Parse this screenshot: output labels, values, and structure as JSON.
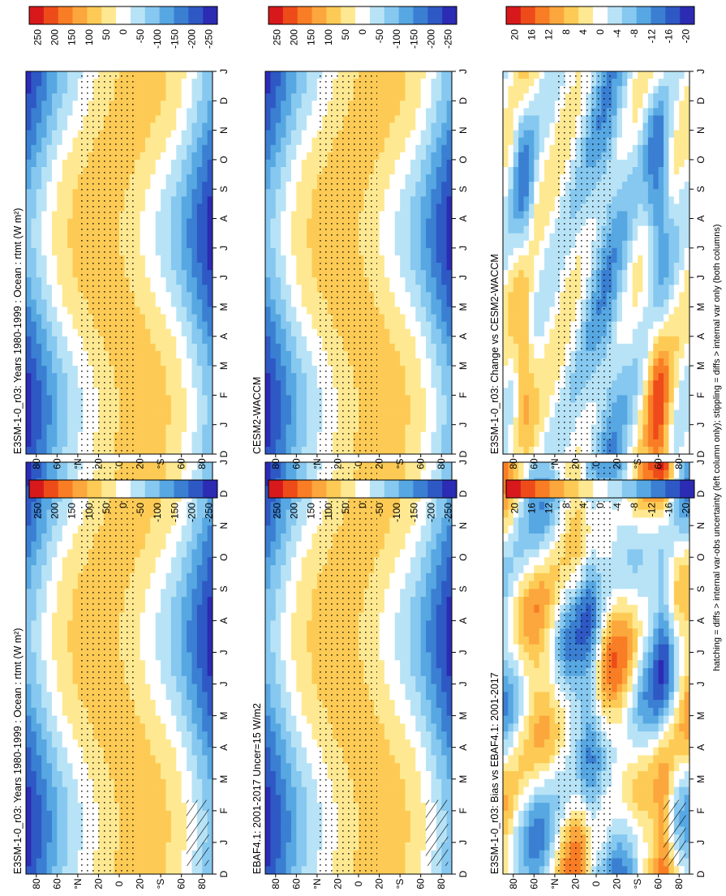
{
  "figure": {
    "footnote": "hatching = diffs > internal var-obs uncertainty (left column only); stippling = diffs > internal var only (both columns)"
  },
  "chart_data": [
    {
      "type": "heatmap",
      "title": "E3SM-1-0_r03: Years 1980-1999 : Ocean : rtmt (W m²)",
      "x": [
        "D",
        "J",
        "F",
        "M",
        "A",
        "M",
        "J",
        "J",
        "A",
        "S",
        "O",
        "N",
        "D",
        "J"
      ],
      "y_ticks": [
        "80",
        "60",
        "°N",
        "20",
        "0",
        "20",
        "°S",
        "60",
        "80"
      ],
      "ylim": [
        -90,
        90
      ],
      "colorbar": {
        "labels": [
          "250",
          "200",
          "150",
          "100",
          "50",
          "0",
          "-50",
          "-100",
          "-150",
          "-200",
          "-250"
        ],
        "range": [
          -275,
          275
        ]
      },
      "field": "rtmt",
      "kind": "abs",
      "hatch": true,
      "stipple": true
    },
    {
      "type": "heatmap",
      "title": "EBAF4.1: 2001-2017 Uncer=15 W/m2",
      "x": [
        "D",
        "J",
        "F",
        "M",
        "A",
        "M",
        "J",
        "J",
        "A",
        "S",
        "O",
        "N",
        "D",
        "J"
      ],
      "y_ticks": [
        "80",
        "60",
        "°N",
        "20",
        "0",
        "20",
        "°S",
        "60",
        "80"
      ],
      "ylim": [
        -90,
        90
      ],
      "colorbar": {
        "labels": [
          "250",
          "200",
          "150",
          "100",
          "50",
          "0",
          "-50",
          "-100",
          "-150",
          "-200",
          "-250"
        ],
        "range": [
          -275,
          275
        ]
      },
      "field": "rtmt",
      "kind": "abs",
      "hatch": true,
      "stipple": true
    },
    {
      "type": "heatmap",
      "title": "E3SM-1-0_r03: Bias vs EBAF4.1: 2001-2017",
      "x": [
        "D",
        "J",
        "F",
        "M",
        "A",
        "M",
        "J",
        "J",
        "A",
        "S",
        "O",
        "N",
        "D",
        "J"
      ],
      "y_ticks": [
        "80",
        "60",
        "°N",
        "20",
        "0",
        "20",
        "°S",
        "60",
        "80"
      ],
      "ylim": [
        -90,
        90
      ],
      "colorbar": {
        "labels": [
          "20",
          "16",
          "12",
          "8",
          "4",
          "0",
          "-4",
          "-8",
          "-12",
          "-16",
          "-20"
        ],
        "range": [
          -22,
          22
        ]
      },
      "field": "rtmt difference",
      "kind": "diff",
      "hatch": true,
      "stipple": true
    },
    {
      "type": "heatmap",
      "title": "E3SM-1-0_r03: Years 1980-1999 : Ocean : rtmt (W m²)",
      "x": [
        "D",
        "J",
        "F",
        "M",
        "A",
        "M",
        "J",
        "J",
        "A",
        "S",
        "O",
        "N",
        "D",
        "J"
      ],
      "y_ticks": [
        "80",
        "60",
        "°N",
        "20",
        "0",
        "20",
        "°S",
        "60",
        "80"
      ],
      "ylim": [
        -90,
        90
      ],
      "colorbar": {
        "labels": [
          "250",
          "200",
          "150",
          "100",
          "50",
          "0",
          "-50",
          "-100",
          "-150",
          "-200",
          "-250"
        ],
        "range": [
          -275,
          275
        ]
      },
      "field": "rtmt",
      "kind": "abs",
      "hatch": false,
      "stipple": true
    },
    {
      "type": "heatmap",
      "title": "CESM2-WACCM",
      "x": [
        "D",
        "J",
        "F",
        "M",
        "A",
        "M",
        "J",
        "J",
        "A",
        "S",
        "O",
        "N",
        "D",
        "J"
      ],
      "y_ticks": [
        "80",
        "60",
        "°N",
        "20",
        "0",
        "20",
        "°S",
        "60",
        "80"
      ],
      "ylim": [
        -90,
        90
      ],
      "colorbar": {
        "labels": [
          "250",
          "200",
          "150",
          "100",
          "50",
          "0",
          "-50",
          "-100",
          "-150",
          "-200",
          "-250"
        ],
        "range": [
          -275,
          275
        ]
      },
      "field": "rtmt",
      "kind": "abs",
      "hatch": false,
      "stipple": true
    },
    {
      "type": "heatmap",
      "title": "E3SM-1-0_r03: Change vs CESM2-WACCM",
      "x": [
        "D",
        "J",
        "F",
        "M",
        "A",
        "M",
        "J",
        "J",
        "A",
        "S",
        "O",
        "N",
        "D",
        "J"
      ],
      "y_ticks": [
        "80",
        "60",
        "°N",
        "20",
        "0",
        "20",
        "°S",
        "60",
        "80"
      ],
      "ylim": [
        -90,
        90
      ],
      "colorbar": {
        "labels": [
          "20",
          "16",
          "12",
          "8",
          "4",
          "0",
          "-4",
          "-8",
          "-12",
          "-16",
          "-20"
        ],
        "range": [
          -22,
          22
        ]
      },
      "field": "rtmt difference",
      "kind": "diff2",
      "hatch": false,
      "stipple": true
    }
  ]
}
